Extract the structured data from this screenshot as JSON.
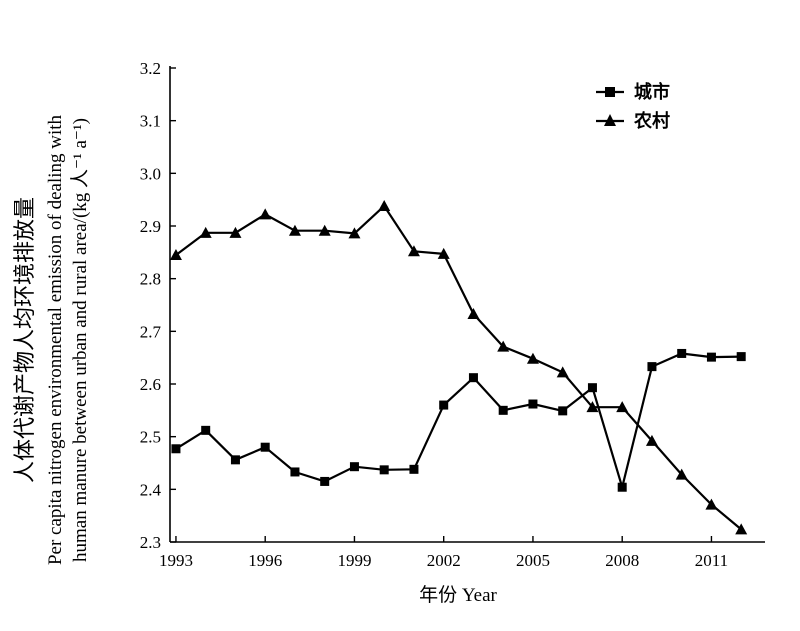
{
  "chart_data": {
    "type": "line",
    "xlabel": "年份 Year",
    "ylabel_lines": [
      "人体代谢产物人均环境排放量",
      "Per capita nitrogen environmental emission of dealing with",
      "human manure between urban and rural area/(kg 人⁻¹ a⁻¹)"
    ],
    "xlim": [
      1992.8,
      2012.8
    ],
    "ylim": [
      2.3,
      3.2
    ],
    "xticks": [
      1993,
      1996,
      1999,
      2002,
      2005,
      2008,
      2011
    ],
    "xtick_labels": [
      "1993",
      "1996",
      "1999",
      "2002",
      "2005",
      "2008",
      "2011"
    ],
    "yticks": [
      2.3,
      2.4,
      2.5,
      2.6,
      2.7,
      2.8,
      2.9,
      3.0,
      3.1,
      3.2
    ],
    "ytick_labels": [
      "2.3",
      "2.4",
      "2.5",
      "2.6",
      "2.7",
      "2.8",
      "2.9",
      "3.0",
      "3.1",
      "3.2"
    ],
    "grid": false,
    "legend_position": "top-right",
    "x": [
      1993,
      1994,
      1995,
      1996,
      1997,
      1998,
      1999,
      2000,
      2001,
      2002,
      2003,
      2004,
      2005,
      2006,
      2007,
      2008,
      2009,
      2010,
      2011,
      2012
    ],
    "series": [
      {
        "name": "城市",
        "marker": "square",
        "values": [
          2.477,
          2.512,
          2.456,
          2.48,
          2.433,
          2.415,
          2.443,
          2.437,
          2.438,
          2.56,
          2.612,
          2.55,
          2.562,
          2.549,
          2.593,
          2.404,
          2.633,
          2.658,
          2.651,
          2.652
        ]
      },
      {
        "name": "农村",
        "marker": "triangle",
        "values": [
          2.845,
          2.887,
          2.887,
          2.922,
          2.891,
          2.891,
          2.886,
          2.938,
          2.852,
          2.847,
          2.733,
          2.671,
          2.648,
          2.622,
          2.556,
          2.556,
          2.492,
          2.428,
          2.371,
          2.324
        ]
      }
    ]
  }
}
